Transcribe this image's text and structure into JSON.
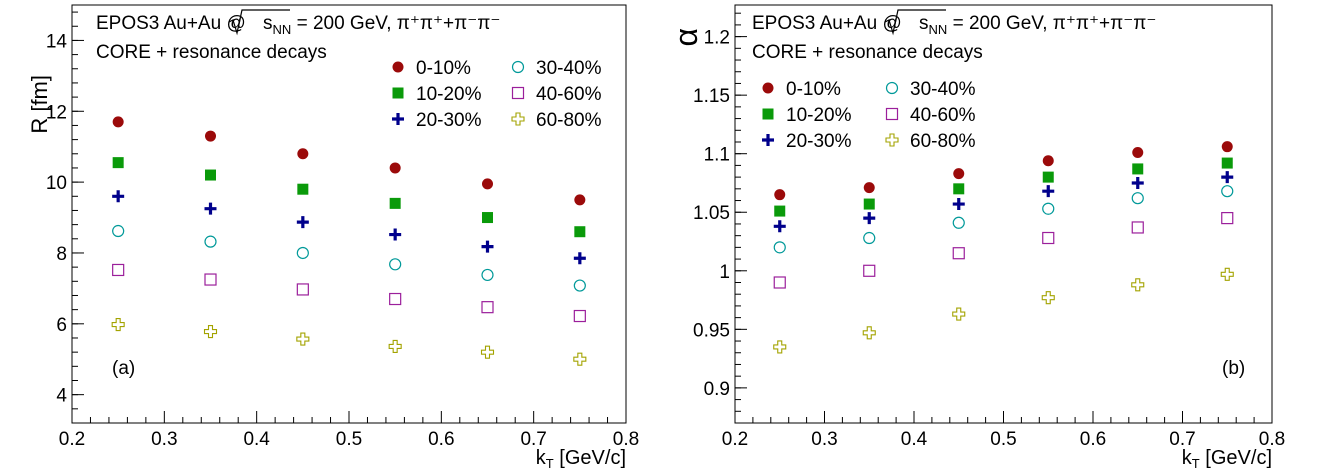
{
  "chart_data": [
    {
      "type": "scatter",
      "panel_label": "(a)",
      "ylabel": "R [fm]",
      "xlabel_main": "k",
      "xlabel_sub": "T",
      "xlabel_unit": " [GeV/c]",
      "xlim": [
        0.2,
        0.8
      ],
      "ylim": [
        3.2,
        15.0
      ],
      "xticks": [
        "0.2",
        "0.3",
        "0.4",
        "0.5",
        "0.6",
        "0.7",
        "0.8"
      ],
      "yticks": [
        "4",
        "6",
        "8",
        "10",
        "12",
        "14"
      ],
      "grid": false,
      "legend_placement": "top-right",
      "x": [
        0.25,
        0.35,
        0.45,
        0.55,
        0.65,
        0.75
      ],
      "series": [
        {
          "name": "0-10%",
          "marker": "filled-circle",
          "color": "#9b0a0a",
          "values": [
            11.7,
            11.3,
            10.8,
            10.4,
            9.95,
            9.5
          ]
        },
        {
          "name": "10-20%",
          "marker": "filled-square",
          "color": "#0a9a0a",
          "values": [
            10.55,
            10.2,
            9.8,
            9.4,
            9.0,
            8.6
          ]
        },
        {
          "name": "20-30%",
          "marker": "cross",
          "color": "#00008c",
          "values": [
            9.6,
            9.25,
            8.87,
            8.52,
            8.18,
            7.85
          ]
        },
        {
          "name": "30-40%",
          "marker": "open-circle",
          "color": "#009999",
          "values": [
            8.62,
            8.32,
            8.0,
            7.68,
            7.38,
            7.08
          ]
        },
        {
          "name": "40-60%",
          "marker": "open-square",
          "color": "#9b1f9b",
          "values": [
            7.52,
            7.25,
            6.97,
            6.7,
            6.47,
            6.22
          ]
        },
        {
          "name": "60-80%",
          "marker": "open-cross",
          "color": "#a3a300",
          "values": [
            5.98,
            5.78,
            5.57,
            5.36,
            5.2,
            5.0
          ]
        }
      ]
    },
    {
      "type": "scatter",
      "panel_label": "(b)",
      "ylabel": "α",
      "xlabel_main": "k",
      "xlabel_sub": "T",
      "xlabel_unit": " [GeV/c]",
      "xlim": [
        0.2,
        0.8
      ],
      "ylim": [
        0.87,
        1.227
      ],
      "xticks": [
        "0.2",
        "0.3",
        "0.4",
        "0.5",
        "0.6",
        "0.7",
        "0.8"
      ],
      "yticks": [
        "0.9",
        "0.95",
        "1",
        "1.05",
        "1.1",
        "1.15",
        "1.2"
      ],
      "grid": false,
      "legend_placement": "top-left",
      "x": [
        0.25,
        0.35,
        0.45,
        0.55,
        0.65,
        0.75
      ],
      "series": [
        {
          "name": "0-10%",
          "marker": "filled-circle",
          "color": "#9b0a0a",
          "values": [
            1.065,
            1.071,
            1.083,
            1.094,
            1.101,
            1.106
          ]
        },
        {
          "name": "10-20%",
          "marker": "filled-square",
          "color": "#0a9a0a",
          "values": [
            1.051,
            1.057,
            1.07,
            1.08,
            1.087,
            1.092
          ]
        },
        {
          "name": "20-30%",
          "marker": "cross",
          "color": "#00008c",
          "values": [
            1.038,
            1.045,
            1.057,
            1.068,
            1.075,
            1.08
          ]
        },
        {
          "name": "30-40%",
          "marker": "open-circle",
          "color": "#009999",
          "values": [
            1.02,
            1.028,
            1.041,
            1.053,
            1.062,
            1.068
          ]
        },
        {
          "name": "40-60%",
          "marker": "open-square",
          "color": "#9b1f9b",
          "values": [
            0.99,
            1.0,
            1.015,
            1.028,
            1.037,
            1.045
          ]
        },
        {
          "name": "60-80%",
          "marker": "open-cross",
          "color": "#a3a300",
          "values": [
            0.935,
            0.947,
            0.963,
            0.977,
            0.988,
            0.997
          ]
        }
      ]
    }
  ],
  "annotations": {
    "system_prefix": "EPOS3 Au+Au @ ",
    "sqrt_s": "s",
    "sqrt_sub": "NN",
    "energy": " = 200 GeV, ",
    "pion_label": "π⁺π⁺+π⁻π⁻",
    "model": "CORE + resonance decays"
  }
}
